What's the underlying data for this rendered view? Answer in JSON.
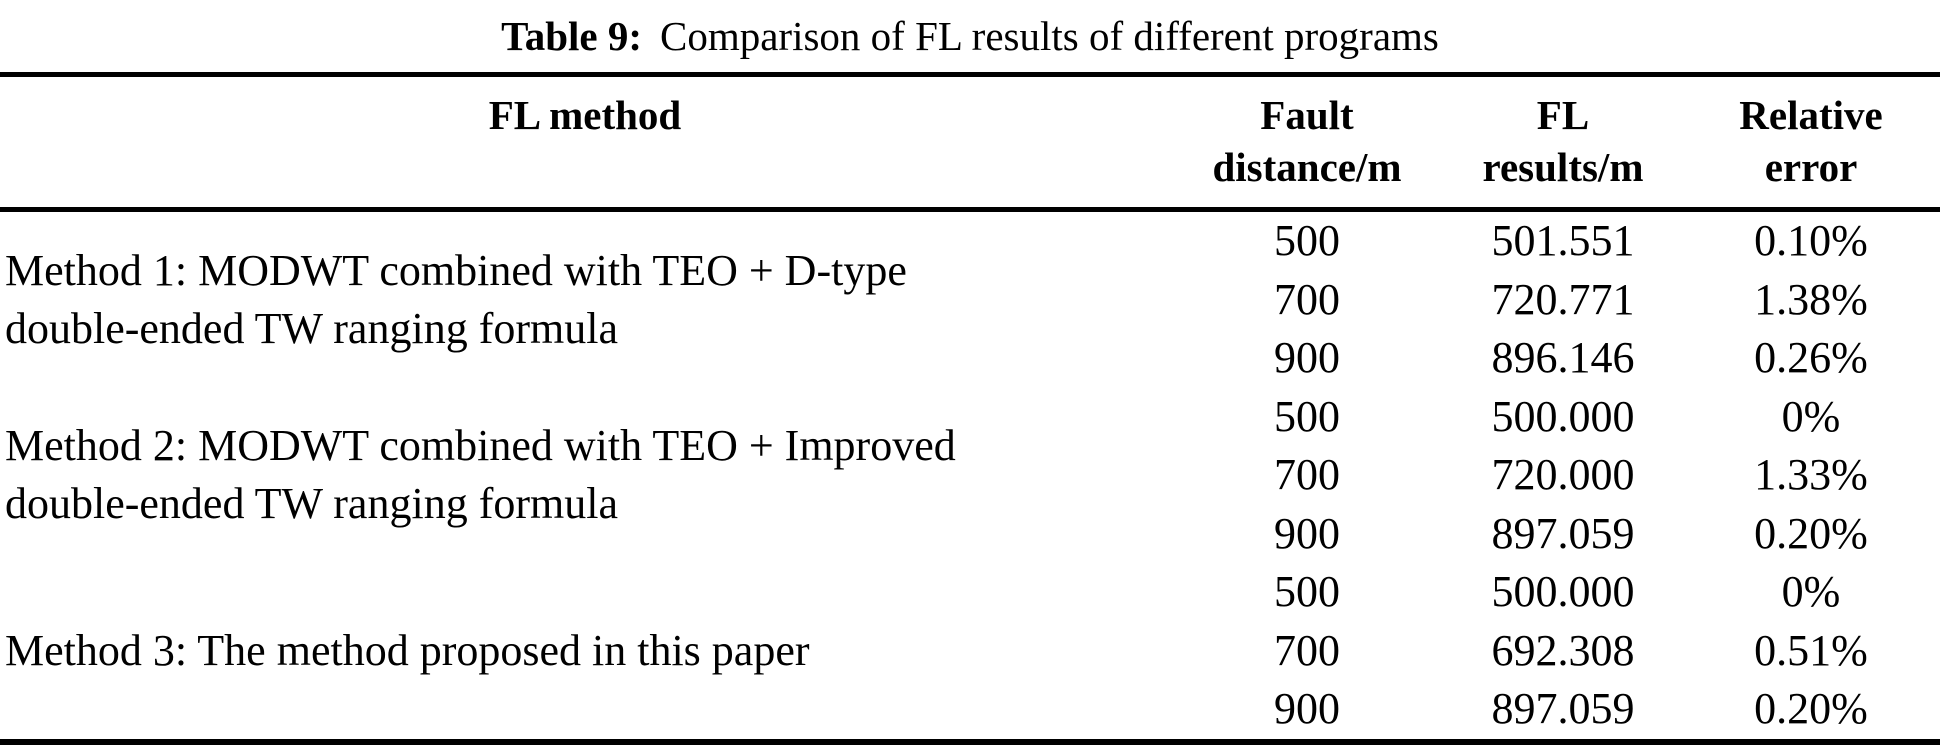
{
  "caption": {
    "label": "Table 9:",
    "title": "Comparison of FL results of different programs"
  },
  "table": {
    "headers": [
      {
        "line1": "FL method",
        "line2": ""
      },
      {
        "line1": "Fault",
        "line2": "distance/m"
      },
      {
        "line1": "FL",
        "line2": "results/m"
      },
      {
        "line1": "Relative",
        "line2": "error"
      }
    ],
    "groups": [
      {
        "method": "Method 1: MODWT combined with TEO + D-type double-ended TW ranging formula",
        "rows": [
          {
            "fault_distance": "500",
            "fl_result": "501.551",
            "relative_error": "0.10%"
          },
          {
            "fault_distance": "700",
            "fl_result": "720.771",
            "relative_error": "1.38%"
          },
          {
            "fault_distance": "900",
            "fl_result": "896.146",
            "relative_error": "0.26%"
          }
        ]
      },
      {
        "method": "Method 2: MODWT combined with TEO + Improved double-ended TW ranging formula",
        "rows": [
          {
            "fault_distance": "500",
            "fl_result": "500.000",
            "relative_error": "0%"
          },
          {
            "fault_distance": "700",
            "fl_result": "720.000",
            "relative_error": "1.33%"
          },
          {
            "fault_distance": "900",
            "fl_result": "897.059",
            "relative_error": "0.20%"
          }
        ]
      },
      {
        "method": "Method 3: The method proposed in this paper",
        "rows": [
          {
            "fault_distance": "500",
            "fl_result": "500.000",
            "relative_error": "0%"
          },
          {
            "fault_distance": "700",
            "fl_result": "692.308",
            "relative_error": "0.51%"
          },
          {
            "fault_distance": "900",
            "fl_result": "897.059",
            "relative_error": "0.20%"
          }
        ]
      }
    ]
  }
}
